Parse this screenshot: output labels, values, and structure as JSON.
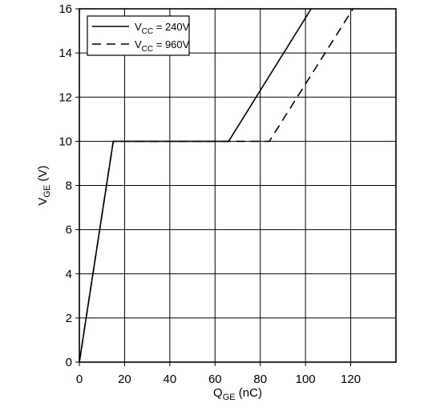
{
  "chart_data": {
    "type": "line",
    "title": "",
    "xlabel": {
      "main": "Q",
      "sub": "GE",
      "unit": " (nC)"
    },
    "ylabel": {
      "main": "V",
      "sub": "GE",
      "unit": " (V)"
    },
    "xlim": [
      0,
      140
    ],
    "ylim": [
      0,
      16
    ],
    "xticks": [
      0,
      20,
      40,
      60,
      80,
      100,
      120
    ],
    "yticks": [
      0,
      2,
      4,
      6,
      8,
      10,
      12,
      14,
      16
    ],
    "grid": true,
    "legend_position": "top-left",
    "series": [
      {
        "name": {
          "main": "V",
          "sub": "CC",
          "rest": " = 240V"
        },
        "style": "solid",
        "x": [
          0,
          15,
          66,
          102.5
        ],
        "y": [
          0,
          10,
          10,
          16
        ]
      },
      {
        "name": {
          "main": "V",
          "sub": "CC",
          "rest": " = 960V"
        },
        "style": "dashed",
        "x": [
          0,
          15,
          84,
          121
        ],
        "y": [
          0,
          10,
          10,
          16
        ]
      }
    ]
  }
}
